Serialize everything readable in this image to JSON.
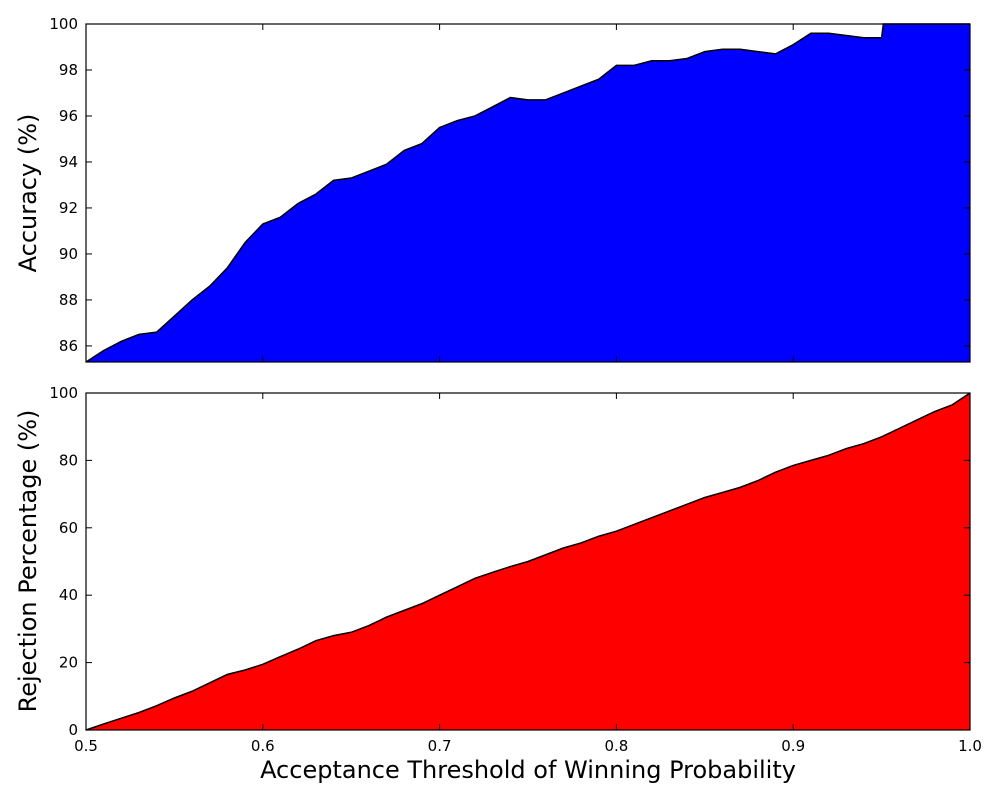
{
  "chart_data": [
    {
      "type": "area",
      "ylabel": "Accuracy (%)",
      "xlabel": "",
      "xlim": [
        0.5,
        1.0
      ],
      "ylim": [
        85.3,
        100
      ],
      "yticks": [
        86,
        88,
        90,
        92,
        94,
        96,
        98,
        100
      ],
      "xticks": [
        0.5,
        0.6,
        0.7,
        0.8,
        0.9,
        1.0
      ],
      "show_xtick_labels": false,
      "grid": false,
      "fill_color": "#0000ff",
      "line_color": "#000000",
      "x": [
        0.5,
        0.51,
        0.52,
        0.53,
        0.54,
        0.55,
        0.56,
        0.57,
        0.58,
        0.59,
        0.6,
        0.61,
        0.62,
        0.63,
        0.64,
        0.65,
        0.66,
        0.67,
        0.68,
        0.69,
        0.7,
        0.71,
        0.72,
        0.73,
        0.74,
        0.75,
        0.76,
        0.77,
        0.78,
        0.79,
        0.8,
        0.81,
        0.82,
        0.83,
        0.84,
        0.85,
        0.86,
        0.87,
        0.88,
        0.89,
        0.9,
        0.91,
        0.92,
        0.93,
        0.94,
        0.95,
        0.951,
        0.96,
        0.97,
        0.98,
        0.99,
        1.0
      ],
      "y": [
        85.3,
        85.8,
        86.2,
        86.5,
        86.6,
        87.3,
        88.0,
        88.6,
        89.4,
        90.5,
        91.3,
        91.6,
        92.2,
        92.6,
        93.2,
        93.3,
        93.6,
        93.9,
        94.5,
        94.8,
        95.5,
        95.8,
        96.0,
        96.4,
        96.8,
        96.7,
        96.7,
        97.0,
        97.3,
        97.6,
        98.2,
        98.2,
        98.4,
        98.4,
        98.5,
        98.8,
        98.9,
        98.9,
        98.8,
        98.7,
        99.1,
        99.6,
        99.6,
        99.5,
        99.4,
        99.4,
        100,
        100,
        100,
        100,
        100,
        100
      ]
    },
    {
      "type": "area",
      "ylabel": "Rejection Percentage (%)",
      "xlabel": "Acceptance Threshold of Winning Probability",
      "xlim": [
        0.5,
        1.0
      ],
      "ylim": [
        0,
        100
      ],
      "yticks": [
        0,
        20,
        40,
        60,
        80,
        100
      ],
      "xticks": [
        0.5,
        0.6,
        0.7,
        0.8,
        0.9,
        1.0
      ],
      "show_xtick_labels": true,
      "grid": false,
      "fill_color": "#ff0000",
      "line_color": "#000000",
      "x": [
        0.5,
        0.51,
        0.52,
        0.53,
        0.54,
        0.55,
        0.56,
        0.57,
        0.58,
        0.59,
        0.6,
        0.61,
        0.62,
        0.63,
        0.64,
        0.65,
        0.66,
        0.67,
        0.68,
        0.69,
        0.7,
        0.71,
        0.72,
        0.73,
        0.74,
        0.75,
        0.76,
        0.77,
        0.78,
        0.79,
        0.8,
        0.81,
        0.82,
        0.83,
        0.84,
        0.85,
        0.86,
        0.87,
        0.88,
        0.89,
        0.9,
        0.91,
        0.92,
        0.93,
        0.94,
        0.95,
        0.96,
        0.97,
        0.98,
        0.99,
        1.0
      ],
      "y": [
        0,
        1.8,
        3.5,
        5.2,
        7.2,
        9.5,
        11.5,
        14.0,
        16.5,
        17.8,
        19.5,
        21.8,
        24.0,
        26.5,
        28.0,
        29.0,
        31.0,
        33.5,
        35.5,
        37.5,
        40.0,
        42.5,
        45.0,
        46.8,
        48.5,
        50.0,
        52.0,
        54.0,
        55.5,
        57.5,
        59.0,
        61.0,
        63.0,
        65.0,
        67.0,
        69.0,
        70.5,
        72.0,
        74.0,
        76.5,
        78.5,
        80.0,
        81.5,
        83.5,
        85.0,
        87.0,
        89.5,
        92.0,
        94.5,
        96.5,
        100
      ]
    }
  ]
}
